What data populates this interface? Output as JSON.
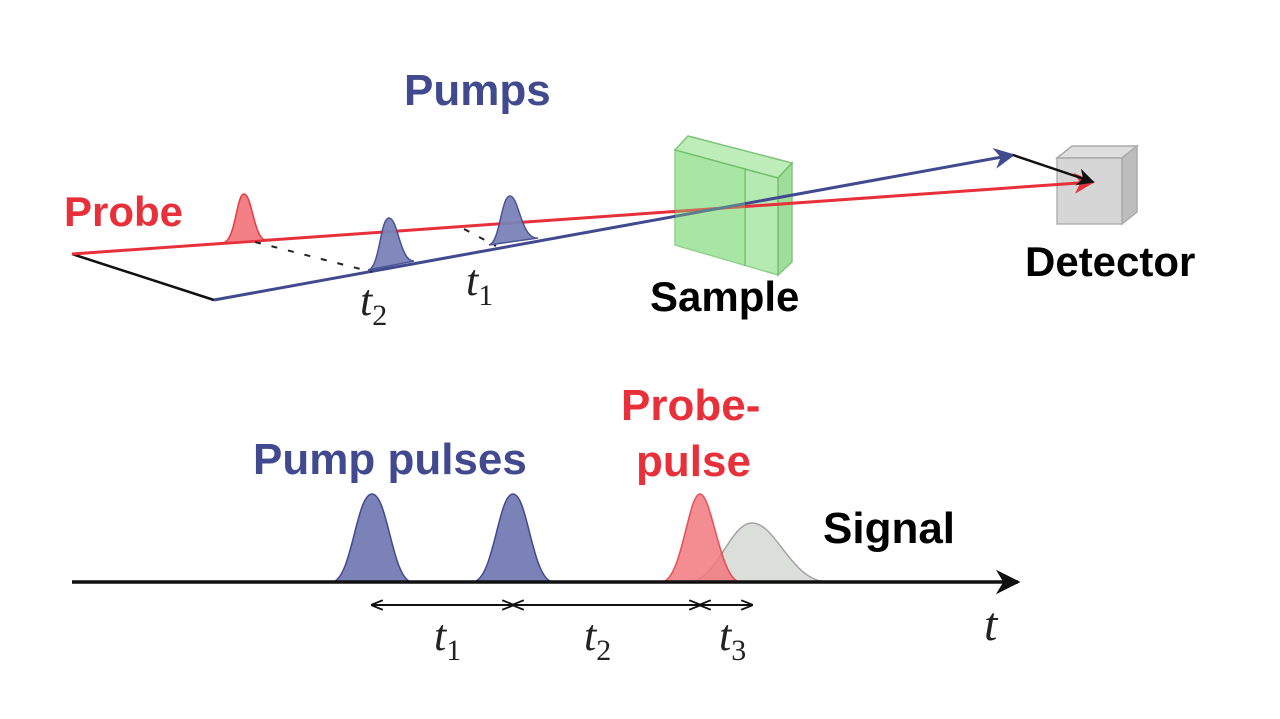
{
  "top": {
    "pumps_label": "Pumps",
    "probe_label": "Probe",
    "sample_label": "Sample",
    "detector_label": "Detector",
    "t2_base": "t",
    "t2_sub": "2",
    "t1_base": "t",
    "t1_sub": "1"
  },
  "bottom": {
    "pump_pulses_label": "Pump pulses",
    "probe_pulse_line1": "Probe-",
    "probe_pulse_line2": "pulse",
    "signal_label": "Signal",
    "t_axis_label": "t",
    "interval1_base": "t",
    "interval1_sub": "1",
    "interval2_base": "t",
    "interval2_sub": "2",
    "interval3_base": "t",
    "interval3_sub": "3"
  },
  "colors": {
    "probe": "#e8303a",
    "pump": "#414a8e",
    "pump_fill": "#7b82b8",
    "probe_fill": "#f27a7f",
    "signal_fill": "#d8dcd6",
    "sample_fill": "#8fe08a",
    "detector_fill": "#c9c9c9"
  }
}
